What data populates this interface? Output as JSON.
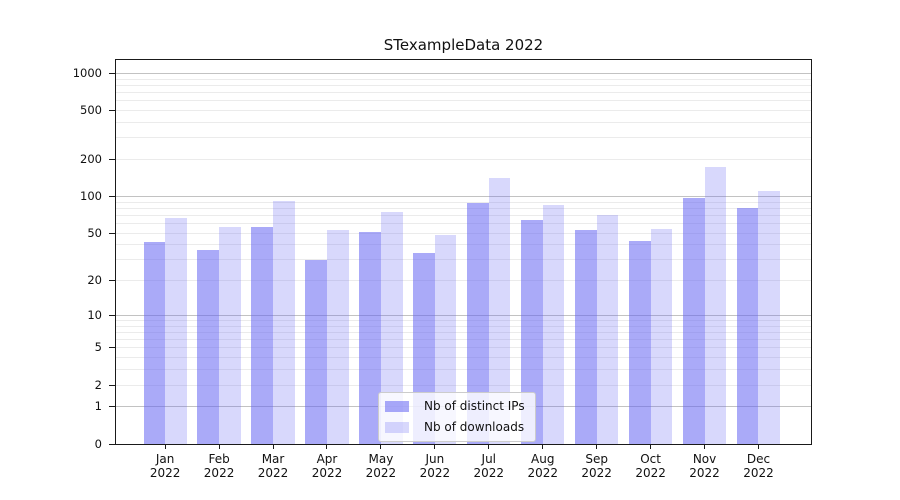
{
  "title": "STexampleData 2022",
  "legend": {
    "position": "lower center",
    "items": [
      {
        "label": "Nb of distinct IPs",
        "color": "#aaaaf8"
      },
      {
        "label": "Nb of downloads",
        "color": "#dcdcfb"
      }
    ]
  },
  "chart_data": {
    "type": "bar",
    "title": "STexampleData 2022",
    "categories": [
      {
        "month": "Jan",
        "year": "2022"
      },
      {
        "month": "Feb",
        "year": "2022"
      },
      {
        "month": "Mar",
        "year": "2022"
      },
      {
        "month": "Apr",
        "year": "2022"
      },
      {
        "month": "May",
        "year": "2022"
      },
      {
        "month": "Jun",
        "year": "2022"
      },
      {
        "month": "Jul",
        "year": "2022"
      },
      {
        "month": "Aug",
        "year": "2022"
      },
      {
        "month": "Sep",
        "year": "2022"
      },
      {
        "month": "Oct",
        "year": "2022"
      },
      {
        "month": "Nov",
        "year": "2022"
      },
      {
        "month": "Dec",
        "year": "2022"
      }
    ],
    "series": [
      {
        "name": "Nb of distinct IPs",
        "color": "#aaaaf8",
        "values": [
          42,
          36,
          56,
          30,
          51,
          34,
          88,
          64,
          53,
          43,
          97,
          81
        ]
      },
      {
        "name": "Nb of downloads",
        "color": "#dcdcfb",
        "values": [
          67,
          56,
          92,
          53,
          74,
          48,
          141,
          85,
          71,
          54,
          174,
          110
        ]
      }
    ],
    "yscale": "log1p",
    "ylim": [
      0,
      1285
    ],
    "yticks": [
      0,
      1,
      2,
      5,
      10,
      20,
      50,
      100,
      200,
      500,
      1000
    ],
    "major_gridlines": [
      1,
      10,
      100,
      1000
    ],
    "minor_gridlines": [
      2,
      3,
      4,
      5,
      6,
      7,
      8,
      9,
      20,
      30,
      40,
      50,
      60,
      70,
      80,
      90,
      200,
      300,
      400,
      500,
      600,
      700,
      800,
      900
    ],
    "grid": true,
    "legend_position": "lower center"
  }
}
